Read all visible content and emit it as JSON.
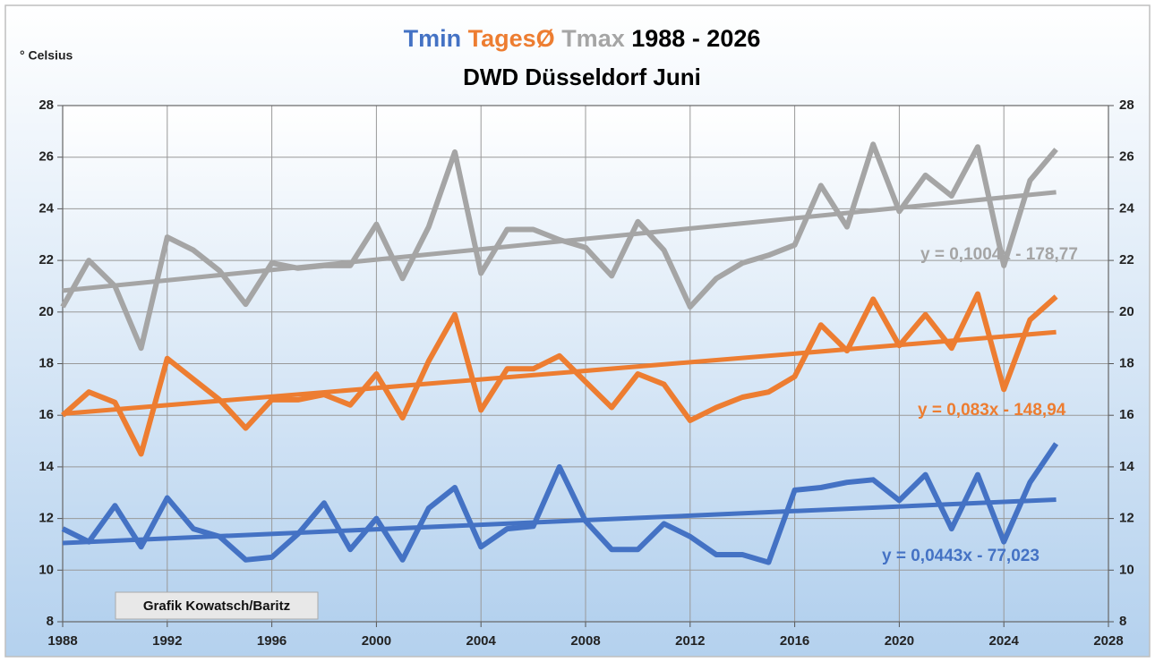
{
  "chart_data": {
    "type": "line",
    "title_years": "1988 - 2026",
    "subtitle": "DWD Düsseldorf Juni",
    "ylabel": "° Celsius",
    "annotation": "Grafik Kowatsch/Baritz",
    "x": [
      1988,
      1989,
      1990,
      1991,
      1992,
      1993,
      1994,
      1995,
      1996,
      1997,
      1998,
      1999,
      2000,
      2001,
      2002,
      2003,
      2004,
      2005,
      2006,
      2007,
      2008,
      2009,
      2010,
      2011,
      2012,
      2013,
      2014,
      2015,
      2016,
      2017,
      2018,
      2019,
      2020,
      2021,
      2022,
      2023,
      2024,
      2025,
      2026
    ],
    "series": [
      {
        "name": "Tmin",
        "color": "#4472c4",
        "values": [
          11.6,
          11.1,
          12.5,
          10.9,
          12.8,
          11.6,
          11.3,
          10.4,
          10.5,
          11.4,
          12.6,
          10.8,
          12.0,
          10.4,
          12.4,
          13.2,
          10.9,
          11.6,
          11.7,
          14.0,
          11.9,
          10.8,
          10.8,
          11.8,
          11.3,
          10.6,
          10.6,
          10.3,
          13.1,
          13.2,
          13.4,
          13.5,
          12.7,
          13.7,
          11.6,
          13.7,
          11.1,
          13.4,
          14.9
        ],
        "trend": {
          "x": [
            1988,
            2026
          ],
          "values": [
            11.05,
            12.73
          ],
          "label": "y = 0,0443x - 77,023"
        }
      },
      {
        "name": "TagesØ",
        "color": "#ed7d31",
        "values": [
          16.0,
          16.9,
          16.5,
          14.5,
          18.2,
          17.4,
          16.6,
          15.5,
          16.6,
          16.6,
          16.8,
          16.4,
          17.6,
          15.9,
          18.1,
          19.9,
          16.2,
          17.8,
          17.8,
          18.3,
          17.3,
          16.3,
          17.6,
          17.2,
          15.8,
          16.3,
          16.7,
          16.9,
          17.5,
          19.5,
          18.5,
          20.5,
          18.7,
          19.9,
          18.6,
          20.7,
          17.0,
          19.7,
          20.6
        ],
        "trend": {
          "x": [
            1988,
            2026
          ],
          "values": [
            16.06,
            19.22
          ],
          "label": "y = 0,083x - 148,94"
        }
      },
      {
        "name": "Tmax",
        "color": "#a5a5a5",
        "values": [
          20.2,
          22.0,
          21.0,
          18.6,
          22.9,
          22.4,
          21.6,
          20.3,
          21.9,
          21.7,
          21.8,
          21.8,
          23.4,
          21.3,
          23.3,
          26.2,
          21.5,
          23.2,
          23.2,
          22.8,
          22.5,
          21.4,
          23.5,
          22.4,
          20.2,
          21.3,
          21.9,
          22.2,
          22.6,
          24.9,
          23.3,
          26.5,
          23.9,
          25.3,
          24.5,
          26.4,
          21.8,
          25.1,
          26.3
        ],
        "trend": {
          "x": [
            1988,
            2026
          ],
          "values": [
            20.83,
            24.64
          ],
          "label": "y = 0,1004x - 178,77"
        }
      }
    ],
    "xlim": [
      1988,
      2028
    ],
    "xticks": [
      1988,
      1992,
      1996,
      2000,
      2004,
      2008,
      2012,
      2016,
      2020,
      2024,
      2028
    ],
    "ylim": [
      8,
      28
    ],
    "yticks": [
      8,
      10,
      12,
      14,
      16,
      18,
      20,
      22,
      24,
      26,
      28
    ],
    "y2lim": [
      8,
      28
    ],
    "y2ticks": [
      8,
      10,
      12,
      14,
      16,
      18,
      20,
      22,
      24,
      26,
      28
    ],
    "grid": true
  }
}
